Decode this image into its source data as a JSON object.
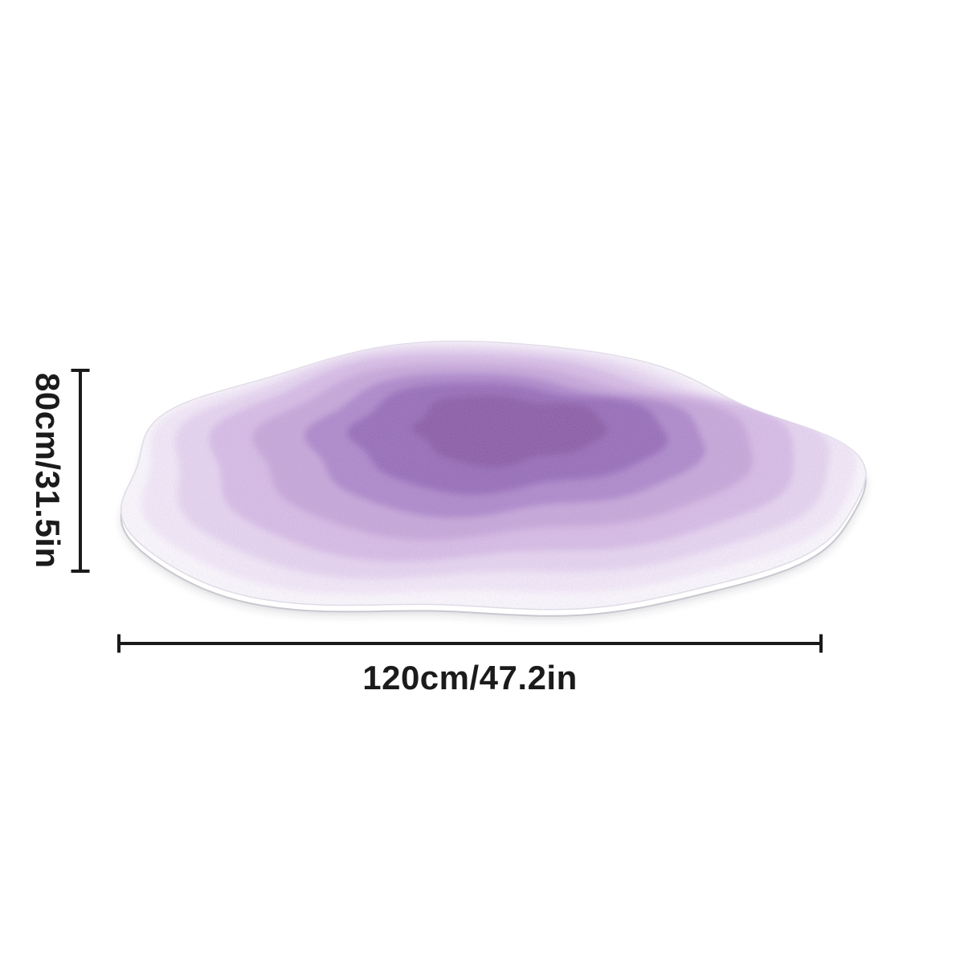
{
  "image": {
    "background": "#ffffff",
    "subject": "irregular cloud-shaped gradient rug, top view in slight perspective"
  },
  "dimensions": {
    "height": {
      "label": "80cm/31.5in"
    },
    "width": {
      "label": "120cm/47.2in"
    },
    "line_color": "#1a1a1a",
    "text_color": "#1b1b1b"
  },
  "rug": {
    "edge_color": "#ffffff",
    "edge_line_color": "#c9c7cf",
    "rim_outline_color": "#e0dde6",
    "shadow_color": "rgba(70,65,80,0.16)",
    "layer_colors": [
      {
        "name": "felt-rim",
        "color": "#fbf8fd"
      },
      {
        "name": "ring-1",
        "color": "#f1e7f7"
      },
      {
        "name": "ring-2",
        "color": "#e4d1ee"
      },
      {
        "name": "ring-3",
        "color": "#d3b7e3"
      },
      {
        "name": "ring-4",
        "color": "#c2a0d6"
      },
      {
        "name": "ring-5",
        "color": "#a77fc6"
      },
      {
        "name": "core",
        "color": "#8f62b2"
      },
      {
        "name": "core-deep",
        "color": "#82519f"
      }
    ]
  }
}
